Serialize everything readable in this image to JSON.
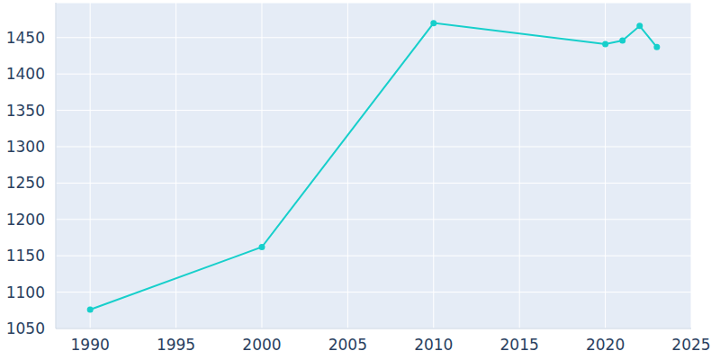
{
  "chart_data": {
    "type": "line",
    "x": [
      1990,
      2000,
      2010,
      2020,
      2021,
      2022,
      2023
    ],
    "values": [
      1076,
      1162,
      1470,
      1441,
      1446,
      1466,
      1437
    ],
    "color": "#17cfcb",
    "marker": "circle",
    "xlim": [
      1988,
      2025
    ],
    "ylim": [
      1050,
      1498
    ],
    "xticks": [
      1990,
      1995,
      2000,
      2005,
      2010,
      2015,
      2020,
      2025
    ],
    "yticks": [
      1050,
      1100,
      1150,
      1200,
      1250,
      1300,
      1350,
      1400,
      1450
    ],
    "grid": true
  }
}
